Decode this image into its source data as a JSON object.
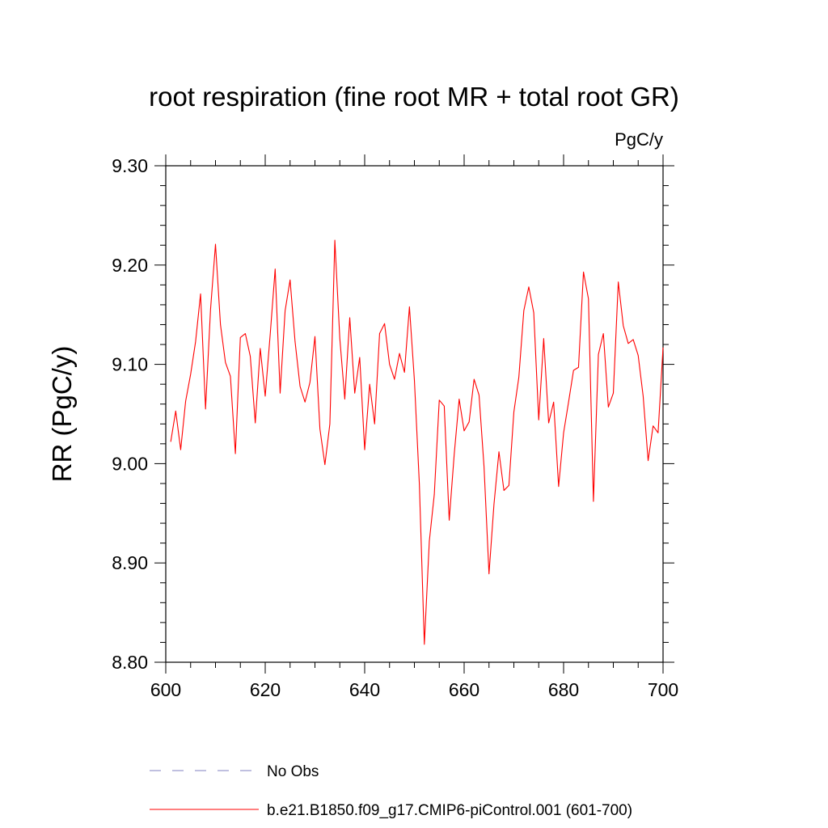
{
  "chart_data": {
    "type": "line",
    "title": "root respiration (fine root MR + total root GR)",
    "units_label": "PgC/y",
    "xlabel": "",
    "ylabel": "RR  (PgC/y)",
    "xlim": [
      600,
      700
    ],
    "ylim": [
      8.8,
      9.3
    ],
    "xticks": [
      600,
      620,
      640,
      660,
      680,
      700
    ],
    "xtick_labels": [
      "600",
      "620",
      "640",
      "660",
      "680",
      "700"
    ],
    "yticks": [
      8.8,
      8.9,
      9.0,
      9.1,
      9.2,
      9.3
    ],
    "ytick_labels": [
      "8.80",
      "8.90",
      "9.00",
      "9.10",
      "9.20",
      "9.30"
    ],
    "grid": false,
    "legend_position": "bottom",
    "legend": [
      {
        "name": "No Obs",
        "style": "dashed",
        "color": "#8080c0"
      },
      {
        "name": "b.e21.B1850.f09_g17.CMIP6-piControl.001 (601-700)",
        "style": "solid",
        "color": "#ff0000"
      }
    ],
    "series": [
      {
        "name": "b.e21.B1850.f09_g17.CMIP6-piControl.001 (601-700)",
        "color": "#ff0000",
        "x": [
          601,
          602,
          603,
          604,
          605,
          606,
          607,
          608,
          609,
          610,
          611,
          612,
          613,
          614,
          615,
          616,
          617,
          618,
          619,
          620,
          621,
          622,
          623,
          624,
          625,
          626,
          627,
          628,
          629,
          630,
          631,
          632,
          633,
          634,
          635,
          636,
          637,
          638,
          639,
          640,
          641,
          642,
          643,
          644,
          645,
          646,
          647,
          648,
          649,
          650,
          651,
          652,
          653,
          654,
          655,
          656,
          657,
          658,
          659,
          660,
          661,
          662,
          663,
          664,
          665,
          666,
          667,
          668,
          669,
          670,
          671,
          672,
          673,
          674,
          675,
          676,
          677,
          678,
          679,
          680,
          681,
          682,
          683,
          684,
          685,
          686,
          687,
          688,
          689,
          690,
          691,
          692,
          693,
          694,
          695,
          696,
          697,
          698,
          699,
          700
        ],
        "values": [
          9.022,
          9.053,
          9.014,
          9.063,
          9.09,
          9.123,
          9.171,
          9.055,
          9.155,
          9.221,
          9.14,
          9.102,
          9.088,
          9.01,
          9.127,
          9.131,
          9.108,
          9.041,
          9.116,
          9.068,
          9.13,
          9.196,
          9.071,
          9.154,
          9.185,
          9.123,
          9.078,
          9.062,
          9.082,
          9.128,
          9.035,
          8.999,
          9.04,
          9.225,
          9.126,
          9.065,
          9.147,
          9.071,
          9.107,
          9.014,
          9.08,
          9.04,
          9.131,
          9.141,
          9.1,
          9.085,
          9.111,
          9.092,
          9.158,
          9.084,
          8.979,
          8.818,
          8.922,
          8.969,
          9.064,
          9.058,
          8.943,
          9.009,
          9.065,
          9.033,
          9.042,
          9.085,
          9.069,
          8.997,
          8.889,
          8.959,
          9.012,
          8.973,
          8.978,
          9.052,
          9.087,
          9.154,
          9.178,
          9.152,
          9.044,
          9.126,
          9.041,
          9.062,
          8.977,
          9.031,
          9.062,
          9.094,
          9.097,
          9.193,
          9.166,
          8.962,
          9.11,
          9.131,
          9.057,
          9.071,
          9.183,
          9.139,
          9.121,
          9.125,
          9.109,
          9.068,
          9.003,
          9.038,
          9.031,
          9.117
        ]
      }
    ]
  }
}
